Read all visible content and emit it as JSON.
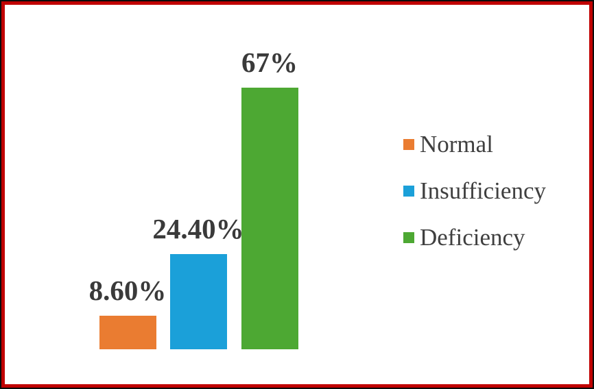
{
  "frame": {
    "outer_border_color": "#0b0b0b",
    "inner_border_color": "#c00000",
    "background": "#ffffff"
  },
  "chart_data": {
    "type": "bar",
    "title": "",
    "xlabel": "",
    "ylabel": "",
    "categories": [
      "Normal",
      "Insufficiency",
      "Deficiency"
    ],
    "values": [
      8.6,
      24.4,
      67
    ],
    "value_labels": [
      "8.60%",
      "24.40%",
      "67%"
    ],
    "colors": [
      "#ea7c31",
      "#1ba0d9",
      "#4da833"
    ],
    "ylim": [
      0,
      72
    ],
    "grid": false,
    "axes_visible": false,
    "legend_position": "right",
    "label_color": "#3a3a3a",
    "legend": [
      {
        "label": "Normal",
        "color": "#ea7c31"
      },
      {
        "label": "Insufficiency",
        "color": "#1ba0d9"
      },
      {
        "label": "Deficiency",
        "color": "#4da833"
      }
    ]
  }
}
